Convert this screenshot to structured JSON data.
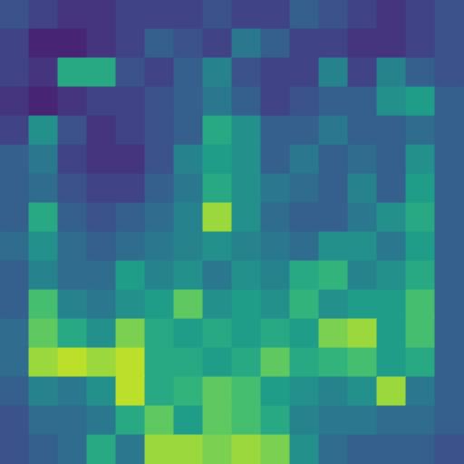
{
  "chart_data": {
    "type": "heatmap",
    "tick_labels": false,
    "color_range": [
      0,
      1
    ],
    "cells": [
      [
        0.25,
        0.2,
        0.15,
        0.15,
        0.2,
        0.2,
        0.2,
        0.25,
        0.2,
        0.2,
        0.3,
        0.25,
        0.2,
        0.15,
        0.2,
        0.25
      ],
      [
        0.2,
        0.1,
        0.1,
        0.15,
        0.2,
        0.3,
        0.25,
        0.2,
        0.4,
        0.3,
        0.2,
        0.2,
        0.15,
        0.15,
        0.2,
        0.25
      ],
      [
        0.2,
        0.15,
        0.6,
        0.6,
        0.25,
        0.2,
        0.3,
        0.45,
        0.25,
        0.2,
        0.2,
        0.45,
        0.2,
        0.45,
        0.3,
        0.25
      ],
      [
        0.15,
        0.1,
        0.15,
        0.2,
        0.2,
        0.25,
        0.3,
        0.4,
        0.3,
        0.2,
        0.25,
        0.3,
        0.3,
        0.5,
        0.55,
        0.3
      ],
      [
        0.2,
        0.5,
        0.25,
        0.15,
        0.2,
        0.25,
        0.3,
        0.6,
        0.5,
        0.3,
        0.3,
        0.4,
        0.3,
        0.3,
        0.35,
        0.3
      ],
      [
        0.3,
        0.4,
        0.2,
        0.15,
        0.15,
        0.25,
        0.45,
        0.55,
        0.5,
        0.3,
        0.4,
        0.3,
        0.35,
        0.3,
        0.5,
        0.3
      ],
      [
        0.3,
        0.35,
        0.25,
        0.2,
        0.2,
        0.3,
        0.4,
        0.6,
        0.5,
        0.4,
        0.35,
        0.3,
        0.45,
        0.3,
        0.55,
        0.3
      ],
      [
        0.3,
        0.6,
        0.3,
        0.25,
        0.3,
        0.35,
        0.45,
        0.85,
        0.5,
        0.35,
        0.3,
        0.3,
        0.4,
        0.5,
        0.6,
        0.3
      ],
      [
        0.35,
        0.5,
        0.35,
        0.3,
        0.35,
        0.4,
        0.45,
        0.5,
        0.45,
        0.4,
        0.35,
        0.5,
        0.5,
        0.4,
        0.55,
        0.3
      ],
      [
        0.3,
        0.45,
        0.35,
        0.35,
        0.55,
        0.45,
        0.5,
        0.4,
        0.5,
        0.45,
        0.6,
        0.65,
        0.45,
        0.5,
        0.6,
        0.3
      ],
      [
        0.3,
        0.7,
        0.45,
        0.4,
        0.5,
        0.55,
        0.75,
        0.5,
        0.55,
        0.5,
        0.65,
        0.5,
        0.55,
        0.55,
        0.7,
        0.3
      ],
      [
        0.35,
        0.75,
        0.6,
        0.5,
        0.8,
        0.6,
        0.55,
        0.6,
        0.55,
        0.6,
        0.55,
        0.8,
        0.85,
        0.55,
        0.7,
        0.3
      ],
      [
        0.35,
        0.85,
        0.9,
        0.85,
        0.9,
        0.6,
        0.6,
        0.55,
        0.6,
        0.75,
        0.6,
        0.65,
        0.7,
        0.55,
        0.6,
        0.3
      ],
      [
        0.3,
        0.45,
        0.4,
        0.5,
        0.9,
        0.6,
        0.65,
        0.75,
        0.7,
        0.55,
        0.5,
        0.45,
        0.5,
        0.85,
        0.4,
        0.3
      ],
      [
        0.25,
        0.35,
        0.35,
        0.4,
        0.6,
        0.75,
        0.55,
        0.75,
        0.7,
        0.6,
        0.45,
        0.4,
        0.4,
        0.35,
        0.35,
        0.3
      ],
      [
        0.25,
        0.3,
        0.35,
        0.6,
        0.4,
        0.85,
        0.85,
        0.8,
        0.85,
        0.8,
        0.5,
        0.35,
        0.3,
        0.3,
        0.3,
        0.25
      ]
    ]
  }
}
